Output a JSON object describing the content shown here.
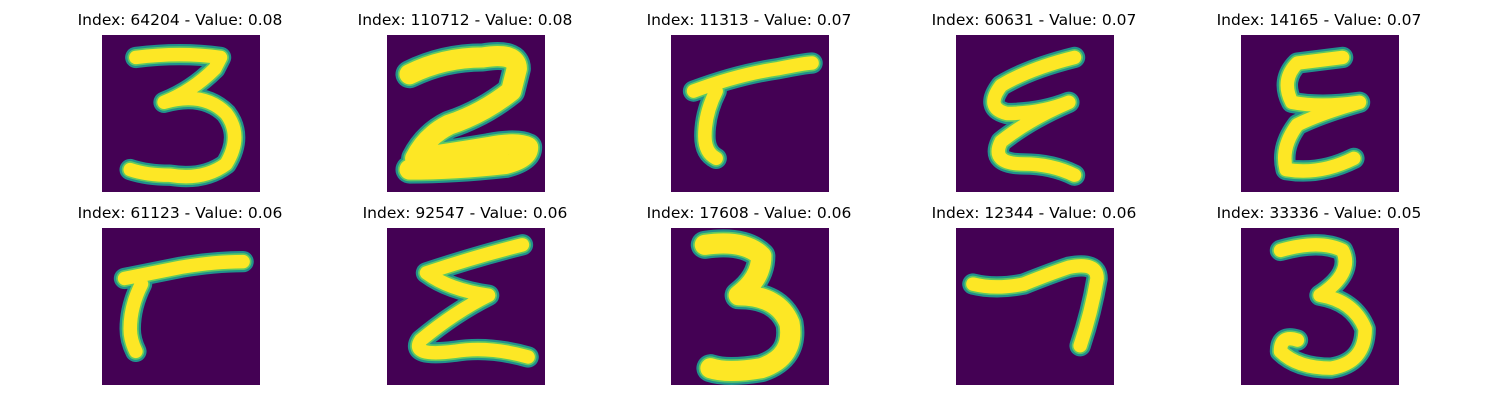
{
  "colormap": {
    "background": "#440154",
    "edge": "#21918c",
    "mid": "#5ec962",
    "stroke": "#fde725"
  },
  "panels": [
    {
      "title": "Index: 64204 - Value: 0.08",
      "depicts": "handwritten-3"
    },
    {
      "title": "Index: 110712 - Value: 0.08",
      "depicts": "handwritten-2"
    },
    {
      "title": "Index: 11313 - Value: 0.07",
      "depicts": "handwritten-7"
    },
    {
      "title": "Index: 60631 - Value: 0.07",
      "depicts": "handwritten-3-reversed"
    },
    {
      "title": "Index: 14165 - Value: 0.07",
      "depicts": "handwritten-3-reversed"
    },
    {
      "title": "Index: 61123 - Value: 0.06",
      "depicts": "handwritten-7"
    },
    {
      "title": "Index: 92547 - Value: 0.06",
      "depicts": "handwritten-3-reversed"
    },
    {
      "title": "Index: 17608 - Value: 0.06",
      "depicts": "handwritten-3"
    },
    {
      "title": "Index: 12344 - Value: 0.06",
      "depicts": "handwritten-7"
    },
    {
      "title": "Index: 33336 - Value: 0.05",
      "depicts": "handwritten-3"
    }
  ]
}
